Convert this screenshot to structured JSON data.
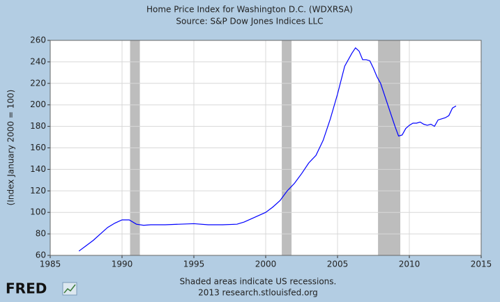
{
  "chart_data": {
    "type": "line",
    "title": "Home Price Index for Washington D.C. (WDXRSA)",
    "subtitle": "Source: S&P Dow Jones Indices LLC",
    "y_label": "(Index January 2000 = 100)",
    "notes": [
      "Shaded areas indicate US recessions.",
      "2013 research.stlouisfed.org"
    ],
    "logo": "FRED",
    "xlim": [
      1985,
      2015
    ],
    "xticks": [
      1985,
      1990,
      1995,
      2000,
      2005,
      2010,
      2015
    ],
    "ylim": [
      60,
      260
    ],
    "yticks": [
      60,
      80,
      100,
      120,
      140,
      160,
      180,
      200,
      220,
      240,
      260
    ],
    "grid": true,
    "recessions": [
      [
        1990.56,
        1991.24
      ],
      [
        2001.12,
        2001.8
      ],
      [
        2007.82,
        2009.37
      ]
    ],
    "recession_color": "#bdbdbd",
    "x": [
      1987,
      1987.5,
      1988,
      1988.5,
      1989,
      1989.5,
      1990,
      1990.5,
      1991,
      1991.5,
      1992,
      1993,
      1994,
      1995,
      1996,
      1997,
      1998,
      1998.5,
      1999,
      1999.5,
      2000,
      2000.5,
      2001,
      2001.5,
      2002,
      2002.5,
      2003,
      2003.5,
      2004,
      2004.5,
      2005,
      2005.5,
      2006,
      2006.25,
      2006.5,
      2006.75,
      2007,
      2007.25,
      2007.5,
      2007.75,
      2008,
      2008.5,
      2009,
      2009.25,
      2009.5,
      2009.75,
      2010,
      2010.25,
      2010.5,
      2010.75,
      2011,
      2011.25,
      2011.5,
      2011.75,
      2012,
      2012.5,
      2012.75,
      2013,
      2013.25
    ],
    "series": [
      {
        "name": "WDXRSA",
        "color": "#0000ff",
        "values": [
          64,
          69,
          74,
          80,
          86,
          90,
          93,
          93,
          89,
          88,
          88.5,
          88.5,
          89,
          89.5,
          88.5,
          88.5,
          89,
          91,
          94,
          97,
          100,
          105,
          111,
          120,
          127,
          136,
          146,
          153,
          167,
          187,
          210,
          236,
          248,
          253,
          250,
          242,
          242,
          241,
          234,
          226,
          220,
          200,
          180,
          171,
          172,
          178,
          181,
          183,
          183,
          184,
          182,
          181,
          182,
          180,
          186,
          188,
          190,
          197,
          199
        ]
      }
    ]
  }
}
